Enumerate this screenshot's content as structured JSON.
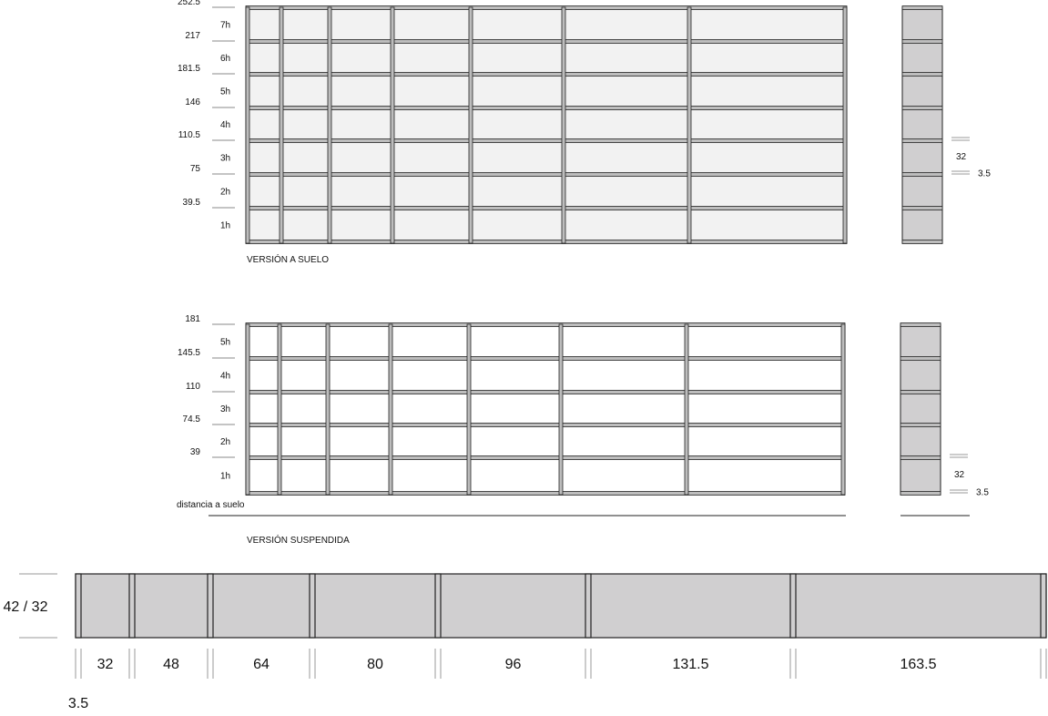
{
  "floor_version": {
    "title": "VERSIÓN A SUELO",
    "height_marks": [
      "39.5",
      "75",
      "110.5",
      "146",
      "181.5",
      "217",
      "252.5"
    ],
    "level_labels": [
      "1h",
      "2h",
      "3h",
      "4h",
      "5h",
      "6h",
      "7h"
    ],
    "side_dims": {
      "depth": "32",
      "thickness": "3.5"
    }
  },
  "suspended_version": {
    "title": "VERSIÓN SUSPENDIDA",
    "height_marks": [
      "39",
      "74.5",
      "110",
      "145.5",
      "181"
    ],
    "level_labels": [
      "1h",
      "2h",
      "3h",
      "4h",
      "5h"
    ],
    "floor_distance_label": "distancia a suelo",
    "side_dims": {
      "depth": "32",
      "thickness": "3.5"
    }
  },
  "plan_view": {
    "depth_label": "42 / 32",
    "module_widths": [
      "32",
      "48",
      "64",
      "80",
      "96",
      "131.5",
      "163.5"
    ],
    "upright_thickness": "3.5"
  },
  "colors": {
    "panel_floor": "#f2f2f2",
    "panel_suspended": "#ffffff",
    "side": "#d0cfd0",
    "shelf": "#bdbdbd",
    "line": "#222222"
  }
}
